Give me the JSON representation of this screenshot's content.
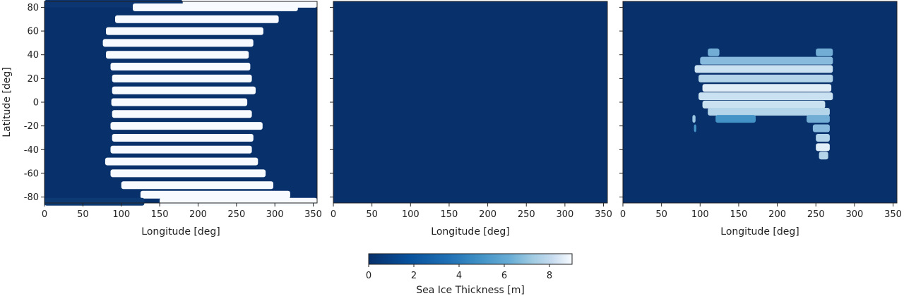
{
  "chart_data": [
    {
      "type": "heatmap",
      "title": "",
      "xlabel": "Longitude [deg]",
      "ylabel": "Latitude [deg]",
      "xlim": [
        0,
        355
      ],
      "ylim": [
        -85,
        85
      ],
      "xticks": [
        0,
        50,
        100,
        150,
        200,
        250,
        300,
        350
      ],
      "yticks": [
        -80,
        -60,
        -40,
        -20,
        0,
        20,
        40,
        60,
        80
      ],
      "rows": [
        {
          "lat": 83,
          "lon_start": 0,
          "lon_end": 180,
          "value": 0.3
        },
        {
          "lat": 83,
          "lon_start": 180,
          "lon_end": 355,
          "value": 9
        },
        {
          "lat": 80,
          "lon_start": 115,
          "lon_end": 330,
          "value": 9
        },
        {
          "lat": 70,
          "lon_start": 92,
          "lon_end": 305,
          "value": 9
        },
        {
          "lat": 60,
          "lon_start": 80,
          "lon_end": 285,
          "value": 9
        },
        {
          "lat": 50,
          "lon_start": 76,
          "lon_end": 272,
          "value": 9
        },
        {
          "lat": 40,
          "lon_start": 80,
          "lon_end": 266,
          "value": 9
        },
        {
          "lat": 30,
          "lon_start": 86,
          "lon_end": 268,
          "value": 9
        },
        {
          "lat": 20,
          "lon_start": 88,
          "lon_end": 270,
          "value": 9
        },
        {
          "lat": 10,
          "lon_start": 88,
          "lon_end": 275,
          "value": 9
        },
        {
          "lat": 0,
          "lon_start": 87,
          "lon_end": 264,
          "value": 9
        },
        {
          "lat": -10,
          "lon_start": 88,
          "lon_end": 270,
          "value": 9
        },
        {
          "lat": -20,
          "lon_start": 86,
          "lon_end": 284,
          "value": 9
        },
        {
          "lat": -30,
          "lon_start": 88,
          "lon_end": 272,
          "value": 9
        },
        {
          "lat": -40,
          "lon_start": 86,
          "lon_end": 270,
          "value": 9
        },
        {
          "lat": -50,
          "lon_start": 79,
          "lon_end": 278,
          "value": 9
        },
        {
          "lat": -60,
          "lon_start": 86,
          "lon_end": 288,
          "value": 9
        },
        {
          "lat": -70,
          "lon_start": 100,
          "lon_end": 298,
          "value": 9
        },
        {
          "lat": -78,
          "lon_start": 125,
          "lon_end": 320,
          "value": 9
        },
        {
          "lat": -84,
          "lon_start": 0,
          "lon_end": 130,
          "value": 0.5
        },
        {
          "lat": -84,
          "lon_start": 150,
          "lon_end": 355,
          "value": 9
        }
      ]
    },
    {
      "type": "heatmap",
      "title": "",
      "xlabel": "Longitude [deg]",
      "ylabel": "",
      "xlim": [
        0,
        355
      ],
      "ylim": [
        -85,
        85
      ],
      "xticks": [
        0,
        50,
        100,
        150,
        200,
        250,
        300,
        350
      ],
      "yticks": [
        -80,
        -60,
        -40,
        -20,
        0,
        20,
        40,
        60,
        80
      ],
      "rows": []
    },
    {
      "type": "heatmap",
      "title": "",
      "xlabel": "Longitude [deg]",
      "ylabel": "",
      "xlim": [
        0,
        355
      ],
      "ylim": [
        -85,
        85
      ],
      "xticks": [
        0,
        50,
        100,
        150,
        200,
        250,
        300,
        350
      ],
      "yticks": [
        -80,
        -60,
        -40,
        -20,
        0,
        20,
        40,
        60,
        80
      ],
      "rows": [
        {
          "lat": 42,
          "lon_start": 110,
          "lon_end": 125,
          "value": 6
        },
        {
          "lat": 42,
          "lon_start": 250,
          "lon_end": 272,
          "value": 6
        },
        {
          "lat": 35,
          "lon_start": 100,
          "lon_end": 272,
          "value": 6.5
        },
        {
          "lat": 28,
          "lon_start": 93,
          "lon_end": 272,
          "value": 8
        },
        {
          "lat": 20,
          "lon_start": 98,
          "lon_end": 272,
          "value": 7.5
        },
        {
          "lat": 12,
          "lon_start": 103,
          "lon_end": 270,
          "value": 8.5
        },
        {
          "lat": 5,
          "lon_start": 98,
          "lon_end": 272,
          "value": 8
        },
        {
          "lat": -2,
          "lon_start": 103,
          "lon_end": 262,
          "value": 8
        },
        {
          "lat": -8,
          "lon_start": 110,
          "lon_end": 268,
          "value": 7.5
        },
        {
          "lat": -14,
          "lon_start": 90,
          "lon_end": 94,
          "value": 7
        },
        {
          "lat": -14,
          "lon_start": 120,
          "lon_end": 172,
          "value": 5
        },
        {
          "lat": -14,
          "lon_start": 238,
          "lon_end": 268,
          "value": 6
        },
        {
          "lat": -22,
          "lon_start": 246,
          "lon_end": 268,
          "value": 6.5
        },
        {
          "lat": -30,
          "lon_start": 250,
          "lon_end": 268,
          "value": 7.5
        },
        {
          "lat": -38,
          "lon_start": 250,
          "lon_end": 268,
          "value": 8.5
        },
        {
          "lat": -45,
          "lon_start": 254,
          "lon_end": 266,
          "value": 7.5
        },
        {
          "lat": -22,
          "lon_start": 92,
          "lon_end": 95,
          "value": 5
        }
      ]
    }
  ],
  "colorbar": {
    "label": "Sea Ice Thickness [m]",
    "range": [
      0,
      9
    ],
    "ticks": [
      0,
      2,
      4,
      6,
      8
    ],
    "colormap": "Blues_r",
    "color_low": "#08306b",
    "color_mid": "#4292c6",
    "color_high": "#f7fbff"
  }
}
